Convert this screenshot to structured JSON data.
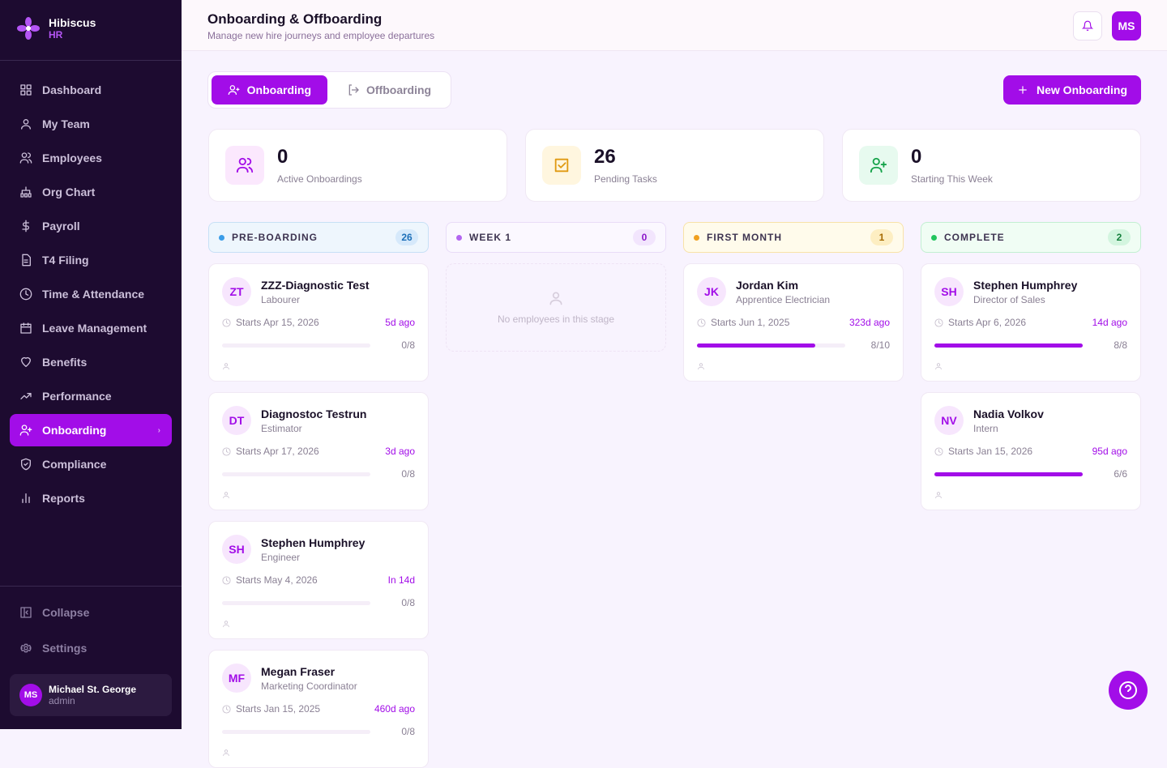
{
  "sidebar": {
    "brand": {
      "name": "Hibiscus",
      "sub": "HR"
    },
    "nav": [
      "Dashboard",
      "My Team",
      "Employees",
      "Org Chart",
      "Payroll",
      "T4 Filing",
      "Time & Attendance",
      "Leave Management",
      "Benefits",
      "Performance",
      "Onboarding",
      "Compliance",
      "Reports"
    ],
    "footer_nav": [
      "Collapse",
      "Settings"
    ],
    "user": {
      "initials": "MS",
      "name": "Michael St. George",
      "role": "admin"
    }
  },
  "header": {
    "title": "Onboarding & Offboarding",
    "subtitle": "Manage new hire journeys and employee departures",
    "user_initials": "MS"
  },
  "tabs": [
    "Onboarding",
    "Offboarding"
  ],
  "new_button": "New Onboarding",
  "stats": [
    {
      "value": 0,
      "label": "Active Onboardings"
    },
    {
      "value": 26,
      "label": "Pending Tasks"
    },
    {
      "value": 0,
      "label": "Starting This Week"
    }
  ],
  "columns": [
    {
      "title": "PRE-BOARDING",
      "count": 26,
      "cards": [
        {
          "initials": "ZT",
          "name": "ZZZ-Diagnostic Test",
          "role": "Labourer",
          "start": "Starts Apr 15, 2026",
          "time": "5d ago",
          "progress": "0/8"
        },
        {
          "initials": "DT",
          "name": "Diagnostoc Testrun",
          "role": "Estimator",
          "start": "Starts Apr 17, 2026",
          "time": "3d ago",
          "progress": "0/8"
        },
        {
          "initials": "SH",
          "name": "Stephen Humphrey",
          "role": "Engineer",
          "start": "Starts May 4, 2026",
          "time": "In 14d",
          "progress": "0/8"
        },
        {
          "initials": "MF",
          "name": "Megan Fraser",
          "role": "Marketing Coordinator",
          "start": "Starts Jan 15, 2025",
          "time": "460d ago",
          "progress": "0/8"
        }
      ]
    },
    {
      "title": "WEEK 1",
      "count": 0,
      "empty": "No employees in this stage",
      "cards": []
    },
    {
      "title": "FIRST MONTH",
      "count": 1,
      "cards": [
        {
          "initials": "JK",
          "name": "Jordan Kim",
          "role": "Apprentice Electrician",
          "start": "Starts Jun 1, 2025",
          "time": "323d ago",
          "progress": "8/10"
        }
      ]
    },
    {
      "title": "COMPLETE",
      "count": 2,
      "cards": [
        {
          "initials": "SH",
          "name": "Stephen Humphrey",
          "role": "Director of Sales",
          "start": "Starts Apr 6, 2026",
          "time": "14d ago",
          "progress": "8/8"
        },
        {
          "initials": "NV",
          "name": "Nadia Volkov",
          "role": "Intern",
          "start": "Starts Jan 15, 2026",
          "time": "95d ago",
          "progress": "6/6"
        }
      ]
    }
  ]
}
